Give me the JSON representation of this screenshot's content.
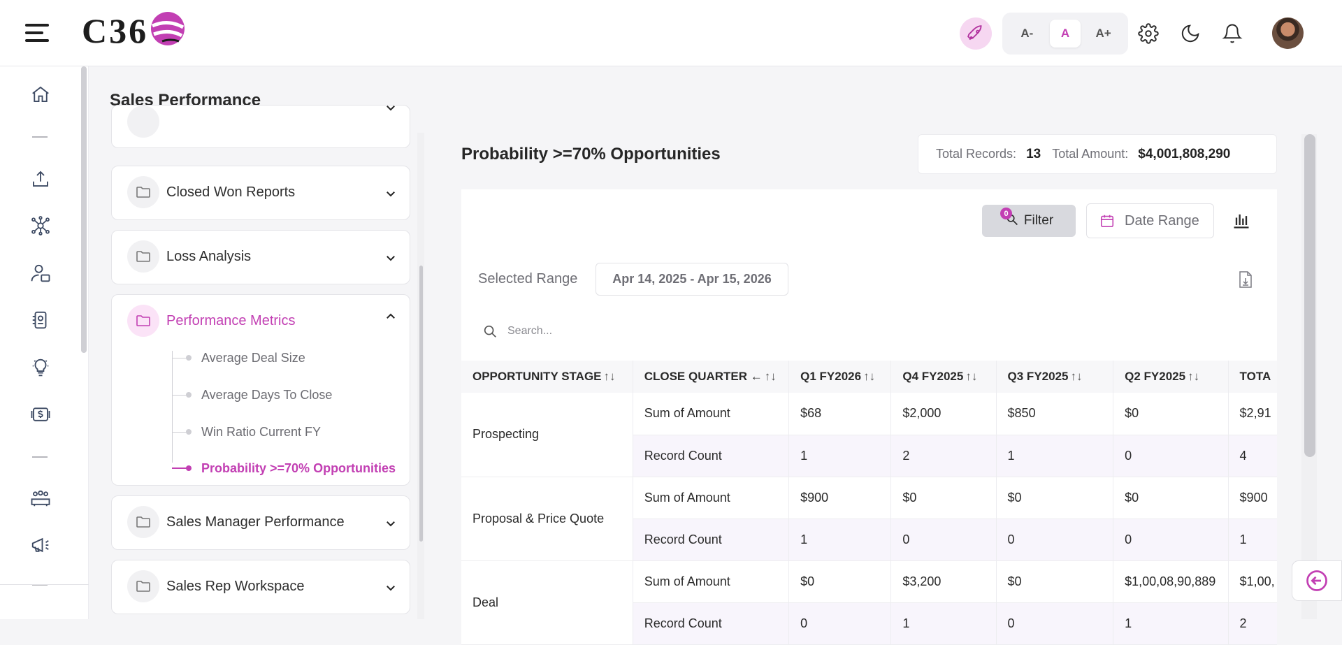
{
  "brand": {
    "logo_text": "C36",
    "accent": "#c23fb3"
  },
  "header": {
    "font_sizes": [
      "A-",
      "A",
      "A+"
    ],
    "active_font_size": "A",
    "icons": [
      "menu-icon",
      "rocket-icon",
      "gear-icon",
      "moon-icon",
      "bell-icon"
    ]
  },
  "rail": {
    "items": [
      "home-icon",
      "upload-icon",
      "network-icon",
      "user-card-icon",
      "id-badge-icon",
      "lightbulb-icon",
      "money-icon",
      "group-icon",
      "megaphone-icon"
    ]
  },
  "page": {
    "title": "Sales Performance"
  },
  "groups": {
    "closed_won": "Closed Won Reports",
    "loss": "Loss Analysis",
    "performance": "Performance Metrics",
    "manager": "Sales Manager Performance",
    "rep": "Sales Rep Workspace"
  },
  "performance_items": [
    "Average Deal Size",
    "Average Days To Close",
    "Win Ratio Current FY",
    "Probability >=70% Opportunities"
  ],
  "report": {
    "title": "Probability >=70% Opportunities",
    "total_records_label": "Total Records:",
    "total_records": "13",
    "total_amount_label": "Total Amount:",
    "total_amount": "$4,001,808,290",
    "filter_label": "Filter",
    "filter_count": "0",
    "date_range_label": "Date Range",
    "selected_range_label": "Selected Range",
    "selected_range": "Apr 14, 2025 - Apr 15, 2026",
    "search_placeholder": "Search..."
  },
  "table": {
    "headers": [
      "OPPORTUNITY STAGE",
      "CLOSE QUARTER ←",
      "Q1 FY2026",
      "Q4 FY2025",
      "Q3 FY2025",
      "Q2 FY2025",
      "TOTA"
    ],
    "rows": [
      {
        "stage": "Prospecting",
        "metric": "Sum of Amount",
        "values": [
          "$68",
          "$2,000",
          "$850",
          "$0",
          "$2,91"
        ]
      },
      {
        "stage": "",
        "metric": "Record Count",
        "values": [
          "1",
          "2",
          "1",
          "0",
          "4"
        ]
      },
      {
        "stage": "Proposal & Price Quote",
        "metric": "Sum of Amount",
        "values": [
          "$900",
          "$0",
          "$0",
          "$0",
          "$900"
        ]
      },
      {
        "stage": "",
        "metric": "Record Count",
        "values": [
          "1",
          "0",
          "0",
          "0",
          "1"
        ]
      },
      {
        "stage": "Deal",
        "metric": "Sum of Amount",
        "values": [
          "$0",
          "$3,200",
          "$0",
          "$1,00,08,90,889",
          "$1,00,"
        ]
      },
      {
        "stage": "",
        "metric": "Record Count",
        "values": [
          "0",
          "1",
          "0",
          "1",
          "2"
        ]
      }
    ]
  }
}
